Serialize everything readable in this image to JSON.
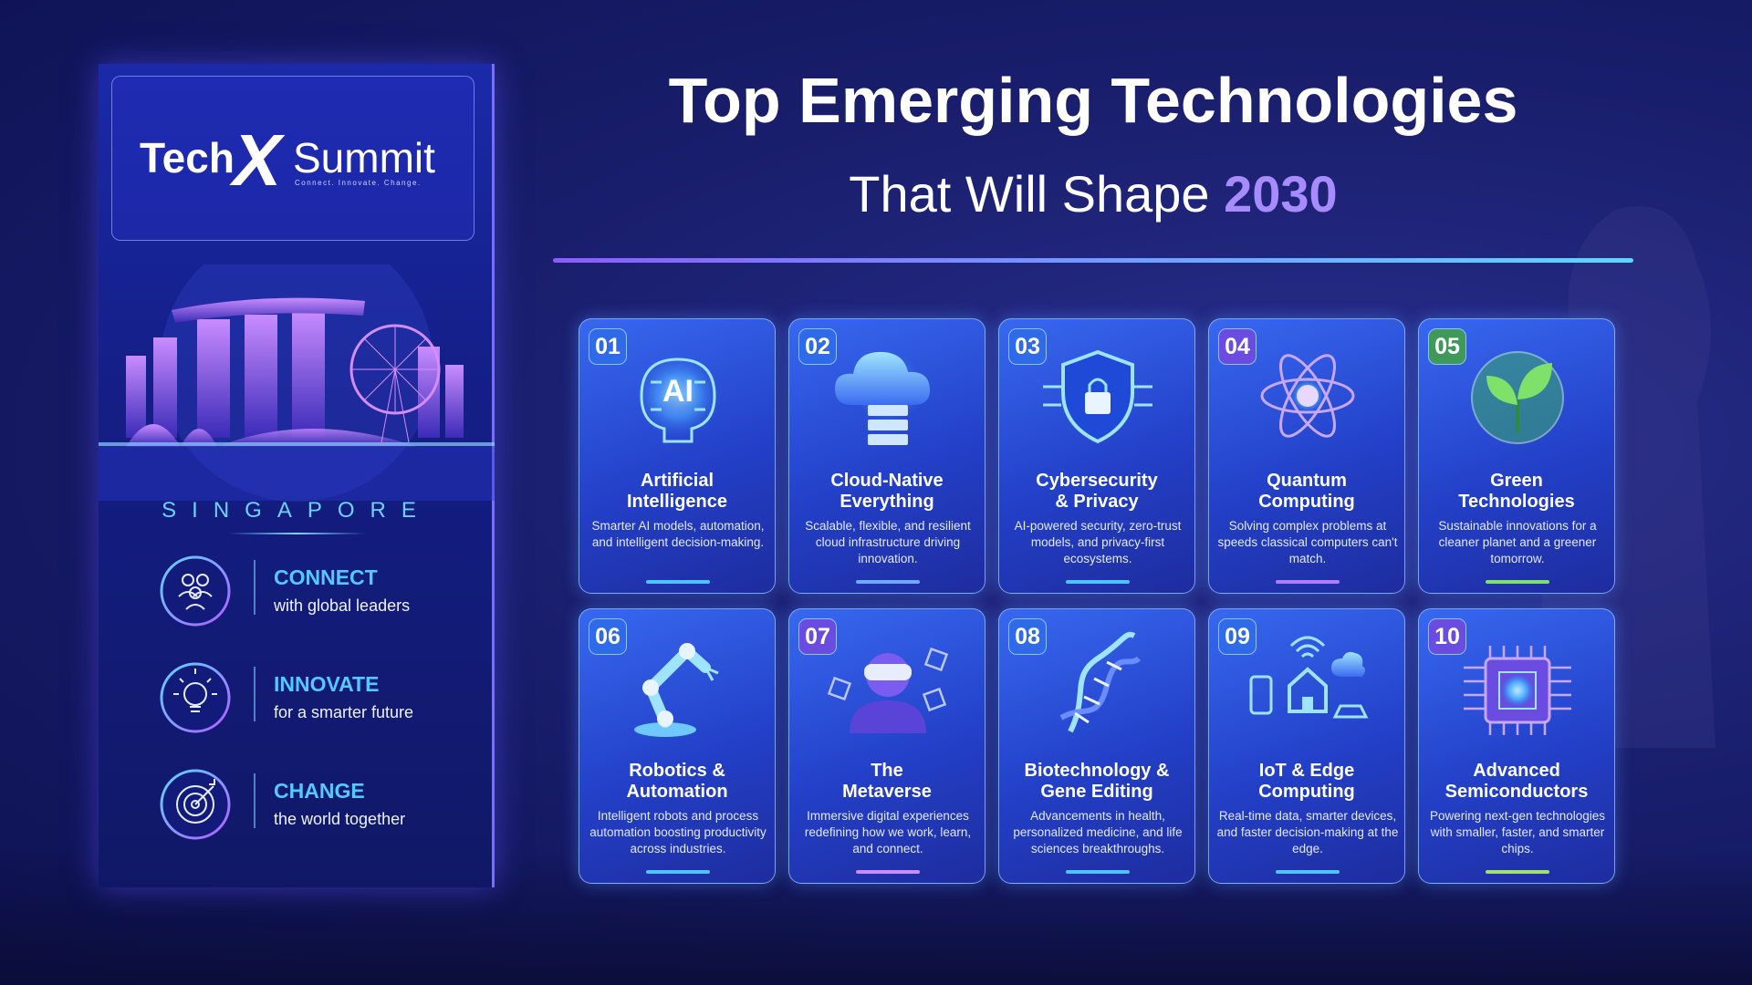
{
  "brand": {
    "name_left": "Tech",
    "name_mark": "X",
    "name_right": "Summit",
    "tagline": "Connect. Innovate. Change."
  },
  "location": "SINGAPORE",
  "pillars": [
    {
      "title": "CONNECT",
      "text": "with global leaders"
    },
    {
      "title": "INNOVATE",
      "text": "for a smarter future"
    },
    {
      "title": "CHANGE",
      "text": "the world together"
    }
  ],
  "header": {
    "title": "Top Emerging Technologies",
    "subtitle": "That Will Shape",
    "year": "2030"
  },
  "cards": [
    {
      "number": "01",
      "icon_label": "AI",
      "title_lines": [
        "Artificial",
        "Intelligence"
      ],
      "description": "Smarter AI models, automation, and intelligent decision-making."
    },
    {
      "number": "02",
      "title_lines": [
        "Cloud-Native",
        "Everything"
      ],
      "description": "Scalable, flexible, and resilient cloud infrastructure driving innovation."
    },
    {
      "number": "03",
      "title_lines": [
        "Cybersecurity",
        "& Privacy"
      ],
      "description": "AI-powered security, zero-trust models, and privacy-first ecosystems."
    },
    {
      "number": "04",
      "title_lines": [
        "Quantum",
        "Computing"
      ],
      "description": "Solving complex problems at speeds classical computers can't match."
    },
    {
      "number": "05",
      "title_lines": [
        "Green",
        "Technologies"
      ],
      "description": "Sustainable innovations for a cleaner planet and a greener tomorrow."
    },
    {
      "number": "06",
      "title_lines": [
        "Robotics &",
        "Automation"
      ],
      "description": "Intelligent robots and process automation boosting productivity across industries."
    },
    {
      "number": "07",
      "title_lines": [
        "The",
        "Metaverse"
      ],
      "description": "Immersive digital experiences redefining how we work, learn, and connect."
    },
    {
      "number": "08",
      "title_lines": [
        "Biotechnology &",
        "Gene Editing"
      ],
      "description": "Advancements in health, personalized medicine, and life sciences breakthroughs."
    },
    {
      "number": "09",
      "title_lines": [
        "IoT & Edge",
        "Computing"
      ],
      "description": "Real-time data, smarter devices, and faster decision-making at the edge."
    },
    {
      "number": "10",
      "title_lines": [
        "Advanced",
        "Semiconductors"
      ],
      "description": "Powering next-gen technologies with smaller, faster, and smarter chips."
    }
  ]
}
